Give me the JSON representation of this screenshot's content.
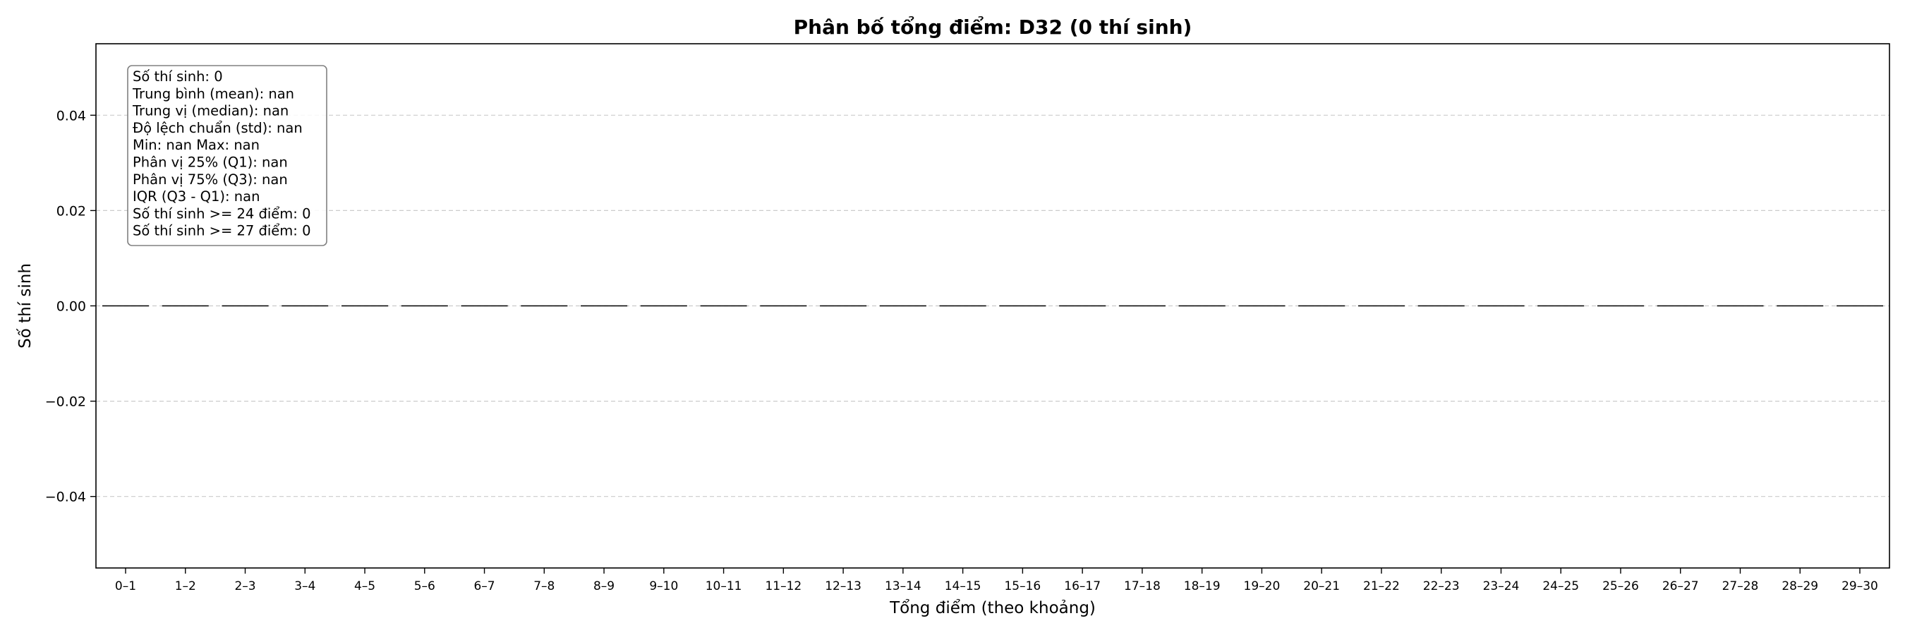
{
  "chart_data": {
    "type": "bar",
    "title": "Phân bố tổng điểm: D32 (0 thí sinh)",
    "xlabel": "Tổng điểm (theo khoảng)",
    "ylabel": "Số thí sinh",
    "categories": [
      "0–1",
      "1–2",
      "2–3",
      "3–4",
      "4–5",
      "5–6",
      "6–7",
      "7–8",
      "8–9",
      "9–10",
      "10–11",
      "11–12",
      "12–13",
      "13–14",
      "14–15",
      "15–16",
      "16–17",
      "17–18",
      "18–19",
      "19–20",
      "20–21",
      "21–22",
      "22–23",
      "23–24",
      "24–25",
      "25–26",
      "26–27",
      "27–28",
      "28–29",
      "29–30"
    ],
    "values": [
      0,
      0,
      0,
      0,
      0,
      0,
      0,
      0,
      0,
      0,
      0,
      0,
      0,
      0,
      0,
      0,
      0,
      0,
      0,
      0,
      0,
      0,
      0,
      0,
      0,
      0,
      0,
      0,
      0,
      0
    ],
    "ylim": [
      -0.055,
      0.055
    ],
    "yticks": [
      -0.04,
      -0.02,
      0.0,
      0.02,
      0.04
    ],
    "ytick_labels": [
      "−0.04",
      "−0.02",
      "0.00",
      "0.02",
      "0.04"
    ],
    "grid": "y-dashed",
    "stats_box": [
      "Số thí sinh: 0",
      "Trung bình (mean): nan",
      "Trung vị (median): nan",
      "Độ lệch chuẩn (std): nan",
      "Min: nan   Max: nan",
      "Phân vị 25% (Q1): nan",
      "Phân vị 75% (Q3): nan",
      "IQR (Q3 - Q1): nan",
      "Số thí sinh >= 24 điểm: 0",
      "Số thí sinh >= 27 điểm: 0"
    ],
    "colors": {
      "bar_edge": "#000000",
      "grid": "#cccccc",
      "box_edge": "#808080"
    }
  }
}
